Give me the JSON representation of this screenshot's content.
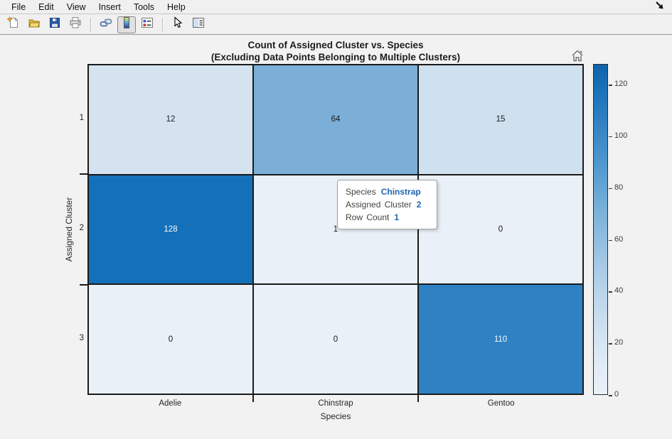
{
  "menu_bar": {
    "items": [
      "File",
      "Edit",
      "View",
      "Insert",
      "Tools",
      "Help"
    ]
  },
  "toolbar": {
    "icons": [
      "new-figure",
      "open-file",
      "save-figure",
      "print-figure",
      "link-plot",
      "insert-colorbar",
      "insert-legend",
      "edit-plot",
      "property-inspector"
    ],
    "active_icon": "insert-colorbar"
  },
  "chart_data": {
    "type": "heatmap",
    "title_line1": "Count of Assigned Cluster vs. Species",
    "title_line2": "(Excluding Data Points Belonging to Multiple Clusters)",
    "xlabel": "Species",
    "ylabel": "Assigned Cluster",
    "x_categories": [
      "Adelie",
      "Chinstrap",
      "Gentoo"
    ],
    "y_categories": [
      "1",
      "2",
      "3"
    ],
    "values": [
      [
        12,
        64,
        15
      ],
      [
        128,
        1,
        0
      ],
      [
        0,
        0,
        110
      ]
    ],
    "cell_colors": [
      [
        "#d5e3f1",
        "#7bafd8",
        "#cfe0ef"
      ],
      [
        "#1471b9",
        "#e9f0f8",
        "#e9f0f8"
      ],
      [
        "#e9f0f8",
        "#e9f0f8",
        "#2e82c4"
      ]
    ],
    "cell_text_colors": [
      [
        "#1a1a1a",
        "#1a1a1a",
        "#1a1a1a"
      ],
      [
        "#f5f8fb",
        "#1a1a1a",
        "#1a1a1a"
      ],
      [
        "#1a1a1a",
        "#1a1a1a",
        "#f5f8fb"
      ]
    ],
    "grid_color": "#1a1a1a",
    "colorbar": {
      "min": 0,
      "max": 128,
      "ticks": [
        0,
        20,
        40,
        60,
        80,
        100,
        120
      ],
      "top_color": "#0f63aa",
      "bottom_color": "#eaf1f9",
      "position": "right"
    }
  },
  "tooltip": {
    "lines": [
      {
        "label": "Species",
        "value": "Chinstrap"
      },
      {
        "label": "Assigned Cluster",
        "value": "2"
      },
      {
        "label": "Row Count",
        "value": "1"
      }
    ],
    "value_color": "#1f64b0"
  },
  "colors": {
    "chrome_bg": "#f0f0f0",
    "canvas_bg": "#f2f2f2",
    "accent_blue": "#1f64b0"
  }
}
